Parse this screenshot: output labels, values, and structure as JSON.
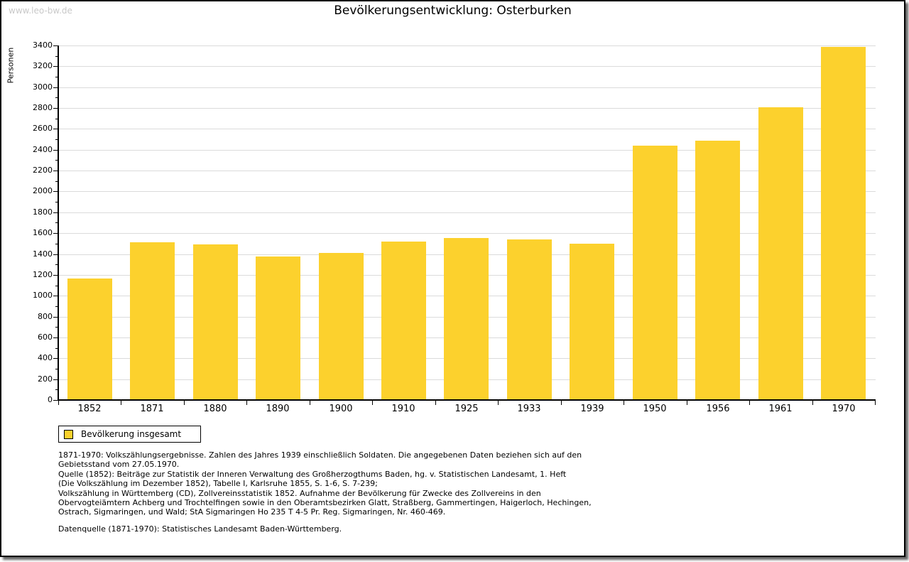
{
  "page": {
    "watermark": "www.leo-bw.de"
  },
  "chart_data": {
    "type": "bar",
    "title": "Bevölkerungsentwicklung: Osterburken",
    "xlabel": "",
    "ylabel": "Personen",
    "categories": [
      "1852",
      "1871",
      "1880",
      "1890",
      "1900",
      "1910",
      "1925",
      "1933",
      "1939",
      "1950",
      "1956",
      "1961",
      "1970"
    ],
    "values": [
      1165,
      1512,
      1494,
      1377,
      1412,
      1519,
      1553,
      1541,
      1498,
      2439,
      2489,
      2805,
      3386
    ],
    "series_name": "Bevölkerung insgesamt",
    "ylim": [
      0,
      3400
    ],
    "ytick_step": 200,
    "yminor_step": 100,
    "grid": true,
    "legend_position": "bottom-left",
    "bar_color": "#FCD12D",
    "gridline_color": "#dbdbdb"
  },
  "legend": {
    "items": [
      {
        "label": "Bevölkerung insgesamt",
        "color": "#FCD12D"
      }
    ]
  },
  "footnotes": {
    "lines": [
      "1871-1970: Volkszählungsergebnisse. Zahlen des Jahres 1939 einschließlich Soldaten. Die angegebenen Daten beziehen sich auf den",
      "Gebietsstand vom 27.05.1970.",
      "Quelle (1852): Beiträge zur Statistik der Inneren Verwaltung des Großherzogthums Baden, hg. v. Statistischen Landesamt, 1. Heft",
      "(Die Volkszählung im Dezember 1852), Tabelle I, Karlsruhe 1855, S. 1-6, S. 7-239;",
      "Volkszählung in Württemberg (CD), Zollvereinsstatistik 1852. Aufnahme der Bevölkerung für Zwecke des Zollvereins in den",
      "Obervogteiämtern Achberg und Trochtelfingen sowie in den Oberamtsbezirken Glatt, Straßberg, Gammertingen, Haigerloch, Hechingen,",
      "Ostrach, Sigmaringen, und Wald; StA Sigmaringen Ho 235 T 4-5 Pr. Reg. Sigmaringen, Nr. 460-469."
    ],
    "datasource": "Datenquelle (1871-1970): Statistisches Landesamt Baden-Württemberg."
  }
}
